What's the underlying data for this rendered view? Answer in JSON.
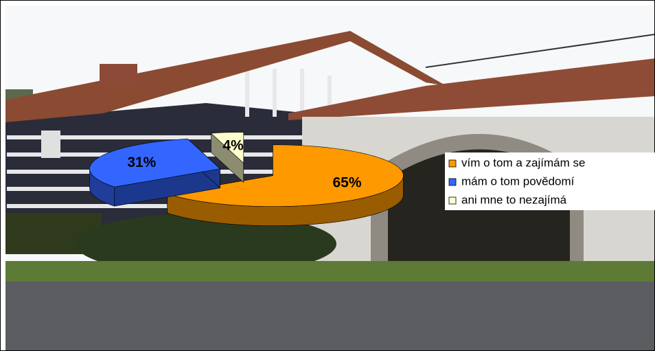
{
  "chart_data": {
    "type": "pie",
    "categories": [
      "vím o tom a zajímám se",
      "mám o tom povědomí",
      "ani mne to nezajímá"
    ],
    "values": [
      65,
      31,
      4
    ],
    "value_labels": [
      "65%",
      "31%",
      "4%"
    ],
    "colors": [
      "#ff9900",
      "#3366ff",
      "#ffffcc"
    ],
    "legend": "right"
  }
}
